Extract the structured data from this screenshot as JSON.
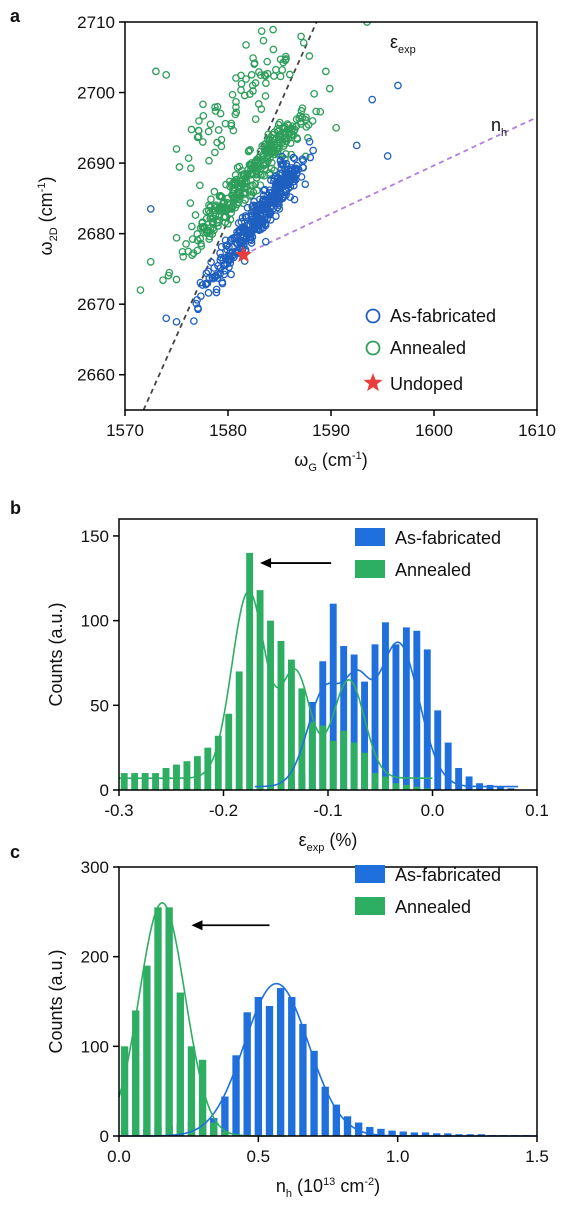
{
  "chart_data": [
    {
      "panel": "a",
      "type": "scatter",
      "xlabel": {
        "main": "ω",
        "sub": "G",
        "rest": " (cm",
        "sup": "-1",
        "close": ")"
      },
      "ylabel": {
        "main": "ω",
        "sub": "2D",
        "rest": " (cm",
        "sup": "-1",
        "close": ")"
      },
      "xlim": [
        1570,
        1610
      ],
      "ylim": [
        2655,
        2710
      ],
      "xticks": [
        "1570",
        "1580",
        "1590",
        "1600",
        "1610"
      ],
      "yticks": [
        "2660",
        "2670",
        "2680",
        "2690",
        "2700",
        "2710"
      ],
      "colors": {
        "as_fabricated": "#1f5fbf",
        "annealed": "#2e9e5b",
        "undoped": "#e83e3e",
        "strain_line": "#444444",
        "doping_line": "#b07fe0"
      },
      "lines": [
        {
          "name": "ε",
          "sub": "exp",
          "x": [
            1571.8,
            1588.6
          ],
          "y": [
            2655,
            2710
          ]
        },
        {
          "name": "n",
          "sub": "h",
          "x": [
            1581.5,
            1610
          ],
          "y": [
            2677,
            2696.5
          ]
        }
      ],
      "undoped_point": {
        "x": 1581.5,
        "y": 2677
      },
      "legend": [
        "As-fabricated",
        "Annealed",
        "Undoped"
      ],
      "series": [
        {
          "name": "As-fabricated",
          "centers": [
            [
              1583.0,
              2682.5
            ],
            [
              1585.0,
              2686.0
            ],
            [
              1580.5,
              2678.0
            ],
            [
              1578.5,
              2674.0
            ],
            [
              1586.5,
              2688.5
            ]
          ],
          "outliers": [
            [
              1572.5,
              2683.5
            ],
            [
              1592.5,
              2692.5
            ],
            [
              1594.0,
              2699.0
            ],
            [
              1595.5,
              2691.0
            ],
            [
              1596.5,
              2701.0
            ],
            [
              1587.5,
              2687.0
            ],
            [
              1574.0,
              2668.0
            ],
            [
              1575.0,
              2667.5
            ]
          ]
        },
        {
          "name": "Annealed",
          "centers": [
            [
              1580.0,
              2684.5
            ],
            [
              1583.0,
              2689.5
            ],
            [
              1585.0,
              2693.0
            ],
            [
              1577.5,
              2680.5
            ],
            [
              1579.5,
              2697.0
            ],
            [
              1583.0,
              2701.5
            ],
            [
              1586.5,
              2694.5
            ]
          ],
          "outliers": [
            [
              1573.0,
              2703.0
            ],
            [
              1574.0,
              2702.5
            ],
            [
              1575.0,
              2692.0
            ],
            [
              1572.5,
              2676.0
            ],
            [
              1571.5,
              2672.0
            ],
            [
              1593.5,
              2710.0
            ],
            [
              1589.5,
              2703.0
            ],
            [
              1590.5,
              2695.0
            ]
          ]
        }
      ]
    },
    {
      "panel": "b",
      "type": "bar",
      "xlabel": {
        "main": "ε",
        "sub": "exp",
        "rest": " (%)"
      },
      "ylabel": "Counts (a.u.)",
      "xlim": [
        -0.3,
        0.1
      ],
      "ylim": [
        0,
        160
      ],
      "xticks": [
        "-0.3",
        "-0.2",
        "-0.1",
        "0.0",
        "0.1"
      ],
      "yticks": [
        "0",
        "50",
        "100",
        "150"
      ],
      "bin_width": 0.01,
      "legend": [
        "As-fabricated",
        "Annealed"
      ],
      "series": [
        {
          "name": "As-fabricated",
          "bin_centers": [
            -0.165,
            -0.155,
            -0.145,
            -0.135,
            -0.125,
            -0.115,
            -0.105,
            -0.095,
            -0.085,
            -0.075,
            -0.065,
            -0.055,
            -0.045,
            -0.035,
            -0.025,
            -0.015,
            -0.005,
            0.005,
            0.015,
            0.025,
            0.035,
            0.045,
            0.055,
            0.065,
            0.075
          ],
          "values": [
            3,
            2,
            4,
            6,
            10,
            52,
            76,
            110,
            85,
            80,
            64,
            86,
            99,
            86,
            96,
            94,
            83,
            47,
            28,
            13,
            8,
            4,
            3,
            2,
            1
          ]
        },
        {
          "name": "Annealed",
          "bin_centers": [
            -0.295,
            -0.285,
            -0.275,
            -0.265,
            -0.255,
            -0.245,
            -0.235,
            -0.225,
            -0.215,
            -0.205,
            -0.195,
            -0.185,
            -0.175,
            -0.165,
            -0.155,
            -0.145,
            -0.135,
            -0.125,
            -0.115,
            -0.105,
            -0.095,
            -0.085,
            -0.075,
            -0.065,
            -0.055,
            -0.045,
            -0.035,
            -0.025,
            -0.015,
            -0.005
          ],
          "values": [
            10,
            10,
            10,
            10,
            13,
            15,
            17,
            20,
            25,
            32,
            45,
            70,
            140,
            118,
            100,
            88,
            77,
            60,
            40,
            38,
            29,
            35,
            28,
            22,
            10,
            8,
            4,
            3,
            2,
            1
          ]
        }
      ],
      "fits": [
        {
          "series": "As-fabricated",
          "baseline": 2,
          "components": [
            {
              "a": 58,
              "mu": -0.102,
              "sigma": 0.017
            },
            {
              "a": 44,
              "mu": -0.072,
              "sigma": 0.012
            },
            {
              "a": 85,
              "mu": -0.033,
              "sigma": 0.02
            }
          ],
          "x_range": [
            -0.17,
            0.082
          ]
        },
        {
          "series": "Annealed",
          "baseline": 7,
          "components": [
            {
              "a": 110,
              "mu": -0.176,
              "sigma": 0.016
            },
            {
              "a": 62,
              "mu": -0.131,
              "sigma": 0.014
            },
            {
              "a": 58,
              "mu": -0.08,
              "sigma": 0.015
            }
          ],
          "x_range": [
            -0.3,
            0.0
          ]
        }
      ],
      "arrow": {
        "from_x": -0.097,
        "to_x": -0.165,
        "y": 134
      }
    },
    {
      "panel": "c",
      "type": "bar",
      "xlabel": {
        "main": "n",
        "sub": "h",
        "rest": " (10",
        "sup": "13",
        "rest2": " cm",
        "sup2": "-2",
        "close": ")"
      },
      "ylabel": "Counts (a.u.)",
      "xlim": [
        0,
        1.5
      ],
      "ylim": [
        0,
        300
      ],
      "xticks": [
        "0.0",
        "0.5",
        "1.0",
        "1.5"
      ],
      "yticks": [
        "0",
        "100",
        "200",
        "300"
      ],
      "bin_width": 0.04,
      "legend": [
        "As-fabricated",
        "Annealed"
      ],
      "series": [
        {
          "name": "As-fabricated",
          "bin_centers": [
            0.02,
            0.06,
            0.1,
            0.14,
            0.18,
            0.22,
            0.26,
            0.3,
            0.34,
            0.38,
            0.42,
            0.46,
            0.5,
            0.54,
            0.58,
            0.62,
            0.66,
            0.7,
            0.74,
            0.78,
            0.82,
            0.86,
            0.9,
            0.94,
            0.98,
            1.02,
            1.06,
            1.1,
            1.14,
            1.18,
            1.22,
            1.26,
            1.3,
            1.34,
            1.38,
            1.42,
            1.46
          ],
          "values": [
            6,
            6,
            8,
            10,
            12,
            14,
            16,
            18,
            20,
            44,
            90,
            138,
            155,
            145,
            165,
            155,
            125,
            95,
            55,
            35,
            22,
            15,
            10,
            8,
            6,
            5,
            4,
            4,
            3,
            3,
            2,
            2,
            2,
            1,
            1,
            1,
            1
          ]
        },
        {
          "name": "Annealed",
          "bin_centers": [
            0.02,
            0.06,
            0.1,
            0.14,
            0.18,
            0.22,
            0.26,
            0.3,
            0.34,
            0.38
          ],
          "values": [
            100,
            140,
            190,
            255,
            255,
            160,
            100,
            85,
            15,
            5
          ]
        }
      ],
      "fits": [
        {
          "series": "As-fabricated",
          "baseline": 0,
          "components": [
            {
              "a": 170,
              "mu": 0.565,
              "sigma": 0.115
            }
          ],
          "x_range": [
            0.0,
            1.5
          ]
        },
        {
          "series": "Annealed",
          "baseline": 0,
          "components": [
            {
              "a": 260,
              "mu": 0.155,
              "sigma": 0.082
            }
          ],
          "x_range": [
            0.0,
            0.6
          ]
        }
      ],
      "arrow": {
        "from_x": 0.54,
        "to_x": 0.26,
        "y": 235
      }
    }
  ]
}
